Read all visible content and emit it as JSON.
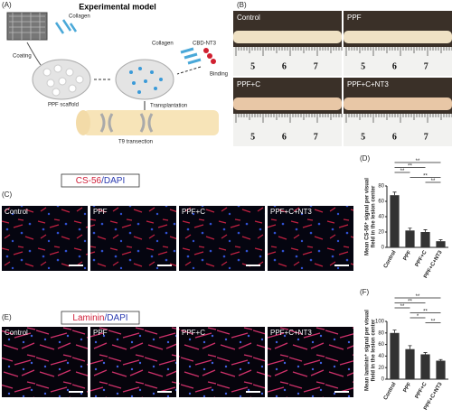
{
  "panel_labels": [
    "(A)",
    "(B)",
    "(C)",
    "(D)",
    "(E)",
    "(F)"
  ],
  "model": {
    "title": "Experimental model",
    "collagen": "Collagen",
    "coating": "Coating",
    "scaffold": "PPF scaffold",
    "collagen2": "Collagen",
    "cbd": "CBD-NT3",
    "binding": "Binding",
    "transplantation": "Transplantation",
    "transection": "T9 transection"
  },
  "photos": {
    "groups": [
      "Control",
      "PPF",
      "PPF+C",
      "PPF+C+NT3"
    ],
    "ruler": [
      "5",
      "6",
      "7"
    ]
  },
  "staining": [
    {
      "marker": "CS-56",
      "counter": "/DAPI",
      "groups": [
        "Control",
        "PPF",
        "PPF+C",
        "PPF+C+NT3"
      ]
    },
    {
      "marker": "Laminin",
      "counter": "/DAPI",
      "groups": [
        "Control",
        "PPF",
        "PPF+C",
        "PPF+C+NT3"
      ]
    }
  ],
  "chart_data": [
    {
      "type": "bar",
      "ylabel": [
        "Mean CS-56⁺ signal per visual",
        "field in the lesion center"
      ],
      "categories": [
        "Control",
        "PPF",
        "PPF+C",
        "PPF+C+NT3"
      ],
      "values": [
        68,
        22,
        20,
        8
      ],
      "errors": [
        4,
        3,
        3,
        2
      ],
      "color": "#333333",
      "ylim": [
        0,
        80
      ],
      "yticks": [
        0,
        20,
        40,
        60,
        80
      ],
      "annotations": [
        {
          "text": "**",
          "between": [
            "Control",
            "PPF+C+NT3"
          ]
        },
        {
          "text": "**",
          "between": [
            "Control",
            "PPF+C"
          ]
        },
        {
          "text": "**",
          "between": [
            "Control",
            "PPF"
          ]
        },
        {
          "text": "**",
          "between": [
            "PPF",
            "PPF+C+NT3"
          ]
        },
        {
          "text": "**",
          "between": [
            "PPF+C",
            "PPF+C+NT3"
          ]
        }
      ]
    },
    {
      "type": "bar",
      "ylabel": [
        "Mean laminin⁺ signal per visual",
        "field in the lesion center"
      ],
      "categories": [
        "Control",
        "PPF",
        "PPF+C",
        "PPF+C+NT3"
      ],
      "values": [
        80,
        52,
        43,
        32
      ],
      "errors": [
        5,
        6,
        3,
        2
      ],
      "color": "#333333",
      "ylim": [
        0,
        100
      ],
      "yticks": [
        0,
        20,
        40,
        60,
        80,
        100
      ],
      "annotations": [
        {
          "text": "**",
          "between": [
            "Control",
            "PPF+C+NT3"
          ]
        },
        {
          "text": "**",
          "between": [
            "Control",
            "PPF+C"
          ]
        },
        {
          "text": "**",
          "between": [
            "Control",
            "PPF"
          ]
        },
        {
          "text": "**",
          "between": [
            "PPF",
            "PPF+C+NT3"
          ]
        },
        {
          "text": "*",
          "between": [
            "PPF",
            "PPF+C"
          ]
        },
        {
          "text": "**",
          "between": [
            "PPF+C",
            "PPF+C+NT3"
          ]
        }
      ]
    }
  ]
}
